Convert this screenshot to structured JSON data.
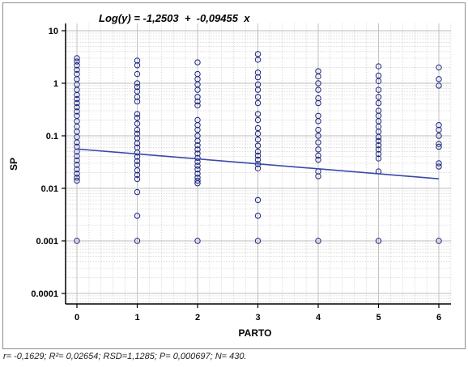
{
  "chart_data": {
    "type": "scatter",
    "title": "Log(y) = -1,2503  +  -0,09455  x",
    "xlabel": "PARTO",
    "ylabel": "SP",
    "y_scale": "log",
    "xlim": [
      -0.25,
      6.2
    ],
    "ylim": [
      5e-05,
      15
    ],
    "x_ticks": [
      0,
      1,
      2,
      3,
      4,
      5,
      6
    ],
    "x_tick_labels": [
      "0",
      "1",
      "2",
      "3",
      "4",
      "5",
      "6"
    ],
    "y_ticks": [
      10,
      1,
      0.1,
      0.01,
      0.001,
      0.0001
    ],
    "y_tick_labels": [
      "10",
      "1",
      "0.1",
      "0.01",
      "0.001",
      "0.0001"
    ],
    "grid": true,
    "colors": {
      "points": "#1a237e",
      "line": "#3949ab",
      "grid": "#bdbdbd"
    },
    "series": [
      {
        "type": "scatter",
        "points": [
          {
            "x": 0,
            "y": 3.0
          },
          {
            "x": 0,
            "y": 2.6
          },
          {
            "x": 0,
            "y": 2.2
          },
          {
            "x": 0,
            "y": 1.8
          },
          {
            "x": 0,
            "y": 1.5
          },
          {
            "x": 0,
            "y": 1.2
          },
          {
            "x": 0,
            "y": 0.95
          },
          {
            "x": 0,
            "y": 0.75
          },
          {
            "x": 0,
            "y": 0.6
          },
          {
            "x": 0,
            "y": 0.5
          },
          {
            "x": 0,
            "y": 0.42
          },
          {
            "x": 0,
            "y": 0.35
          },
          {
            "x": 0,
            "y": 0.29
          },
          {
            "x": 0,
            "y": 0.24
          },
          {
            "x": 0,
            "y": 0.19
          },
          {
            "x": 0,
            "y": 0.15
          },
          {
            "x": 0,
            "y": 0.12
          },
          {
            "x": 0,
            "y": 0.095
          },
          {
            "x": 0,
            "y": 0.075
          },
          {
            "x": 0,
            "y": 0.062
          },
          {
            "x": 0,
            "y": 0.05
          },
          {
            "x": 0,
            "y": 0.041
          },
          {
            "x": 0,
            "y": 0.034
          },
          {
            "x": 0,
            "y": 0.028
          },
          {
            "x": 0,
            "y": 0.023
          },
          {
            "x": 0,
            "y": 0.019
          },
          {
            "x": 0,
            "y": 0.016
          },
          {
            "x": 0,
            "y": 0.014
          },
          {
            "x": 0,
            "y": 0.001
          },
          {
            "x": 1,
            "y": 2.7
          },
          {
            "x": 1,
            "y": 2.2
          },
          {
            "x": 1,
            "y": 1.5
          },
          {
            "x": 1,
            "y": 1.0
          },
          {
            "x": 1,
            "y": 0.85
          },
          {
            "x": 1,
            "y": 0.7
          },
          {
            "x": 1,
            "y": 0.55
          },
          {
            "x": 1,
            "y": 0.45
          },
          {
            "x": 1,
            "y": 0.26
          },
          {
            "x": 1,
            "y": 0.22
          },
          {
            "x": 1,
            "y": 0.17
          },
          {
            "x": 1,
            "y": 0.13
          },
          {
            "x": 1,
            "y": 0.11
          },
          {
            "x": 1,
            "y": 0.09
          },
          {
            "x": 1,
            "y": 0.072
          },
          {
            "x": 1,
            "y": 0.06
          },
          {
            "x": 1,
            "y": 0.048
          },
          {
            "x": 1,
            "y": 0.04
          },
          {
            "x": 1,
            "y": 0.033
          },
          {
            "x": 1,
            "y": 0.028
          },
          {
            "x": 1,
            "y": 0.022
          },
          {
            "x": 1,
            "y": 0.018
          },
          {
            "x": 1,
            "y": 0.015
          },
          {
            "x": 1,
            "y": 0.0085
          },
          {
            "x": 1,
            "y": 0.003
          },
          {
            "x": 1,
            "y": 0.001
          },
          {
            "x": 2,
            "y": 2.5
          },
          {
            "x": 2,
            "y": 1.5
          },
          {
            "x": 2,
            "y": 1.2
          },
          {
            "x": 2,
            "y": 0.95
          },
          {
            "x": 2,
            "y": 0.75
          },
          {
            "x": 2,
            "y": 0.55
          },
          {
            "x": 2,
            "y": 0.45
          },
          {
            "x": 2,
            "y": 0.38
          },
          {
            "x": 2,
            "y": 0.2
          },
          {
            "x": 2,
            "y": 0.16
          },
          {
            "x": 2,
            "y": 0.13
          },
          {
            "x": 2,
            "y": 0.1
          },
          {
            "x": 2,
            "y": 0.08
          },
          {
            "x": 2,
            "y": 0.066
          },
          {
            "x": 2,
            "y": 0.055
          },
          {
            "x": 2,
            "y": 0.046
          },
          {
            "x": 2,
            "y": 0.038
          },
          {
            "x": 2,
            "y": 0.032
          },
          {
            "x": 2,
            "y": 0.027
          },
          {
            "x": 2,
            "y": 0.023
          },
          {
            "x": 2,
            "y": 0.019
          },
          {
            "x": 2,
            "y": 0.016
          },
          {
            "x": 2,
            "y": 0.014
          },
          {
            "x": 2,
            "y": 0.0125
          },
          {
            "x": 2,
            "y": 0.001
          },
          {
            "x": 3,
            "y": 3.6
          },
          {
            "x": 3,
            "y": 2.8
          },
          {
            "x": 3,
            "y": 1.6
          },
          {
            "x": 3,
            "y": 1.3
          },
          {
            "x": 3,
            "y": 0.95
          },
          {
            "x": 3,
            "y": 0.75
          },
          {
            "x": 3,
            "y": 0.55
          },
          {
            "x": 3,
            "y": 0.42
          },
          {
            "x": 3,
            "y": 0.26
          },
          {
            "x": 3,
            "y": 0.2
          },
          {
            "x": 3,
            "y": 0.14
          },
          {
            "x": 3,
            "y": 0.11
          },
          {
            "x": 3,
            "y": 0.085
          },
          {
            "x": 3,
            "y": 0.065
          },
          {
            "x": 3,
            "y": 0.05
          },
          {
            "x": 3,
            "y": 0.042
          },
          {
            "x": 3,
            "y": 0.035
          },
          {
            "x": 3,
            "y": 0.029
          },
          {
            "x": 3,
            "y": 0.024
          },
          {
            "x": 3,
            "y": 0.006
          },
          {
            "x": 3,
            "y": 0.003
          },
          {
            "x": 3,
            "y": 0.001
          },
          {
            "x": 4,
            "y": 1.7
          },
          {
            "x": 4,
            "y": 1.35
          },
          {
            "x": 4,
            "y": 1.0
          },
          {
            "x": 4,
            "y": 0.75
          },
          {
            "x": 4,
            "y": 0.52
          },
          {
            "x": 4,
            "y": 0.42
          },
          {
            "x": 4,
            "y": 0.24
          },
          {
            "x": 4,
            "y": 0.19
          },
          {
            "x": 4,
            "y": 0.13
          },
          {
            "x": 4,
            "y": 0.1
          },
          {
            "x": 4,
            "y": 0.075
          },
          {
            "x": 4,
            "y": 0.055
          },
          {
            "x": 4,
            "y": 0.042
          },
          {
            "x": 4,
            "y": 0.035
          },
          {
            "x": 4,
            "y": 0.021
          },
          {
            "x": 4,
            "y": 0.017
          },
          {
            "x": 4,
            "y": 0.001
          },
          {
            "x": 5,
            "y": 2.1
          },
          {
            "x": 5,
            "y": 1.4
          },
          {
            "x": 5,
            "y": 1.1
          },
          {
            "x": 5,
            "y": 0.75
          },
          {
            "x": 5,
            "y": 0.55
          },
          {
            "x": 5,
            "y": 0.42
          },
          {
            "x": 5,
            "y": 0.3
          },
          {
            "x": 5,
            "y": 0.24
          },
          {
            "x": 5,
            "y": 0.19
          },
          {
            "x": 5,
            "y": 0.15
          },
          {
            "x": 5,
            "y": 0.12
          },
          {
            "x": 5,
            "y": 0.095
          },
          {
            "x": 5,
            "y": 0.08
          },
          {
            "x": 5,
            "y": 0.066
          },
          {
            "x": 5,
            "y": 0.055
          },
          {
            "x": 5,
            "y": 0.045
          },
          {
            "x": 5,
            "y": 0.037
          },
          {
            "x": 5,
            "y": 0.021
          },
          {
            "x": 5,
            "y": 0.001
          },
          {
            "x": 6,
            "y": 2.0
          },
          {
            "x": 6,
            "y": 1.2
          },
          {
            "x": 6,
            "y": 0.9
          },
          {
            "x": 6,
            "y": 0.16
          },
          {
            "x": 6,
            "y": 0.13
          },
          {
            "x": 6,
            "y": 0.1
          },
          {
            "x": 6,
            "y": 0.07
          },
          {
            "x": 6,
            "y": 0.062
          },
          {
            "x": 6,
            "y": 0.03
          },
          {
            "x": 6,
            "y": 0.026
          },
          {
            "x": 6,
            "y": 0.001
          }
        ]
      },
      {
        "type": "line",
        "intercept_log10": -1.2503,
        "slope_log10": -0.09455,
        "x": [
          0,
          6
        ]
      }
    ],
    "caption": "r= -0,1629; R²= 0,02654; RSD=1,1285; P= 0,000697; N= 430."
  }
}
